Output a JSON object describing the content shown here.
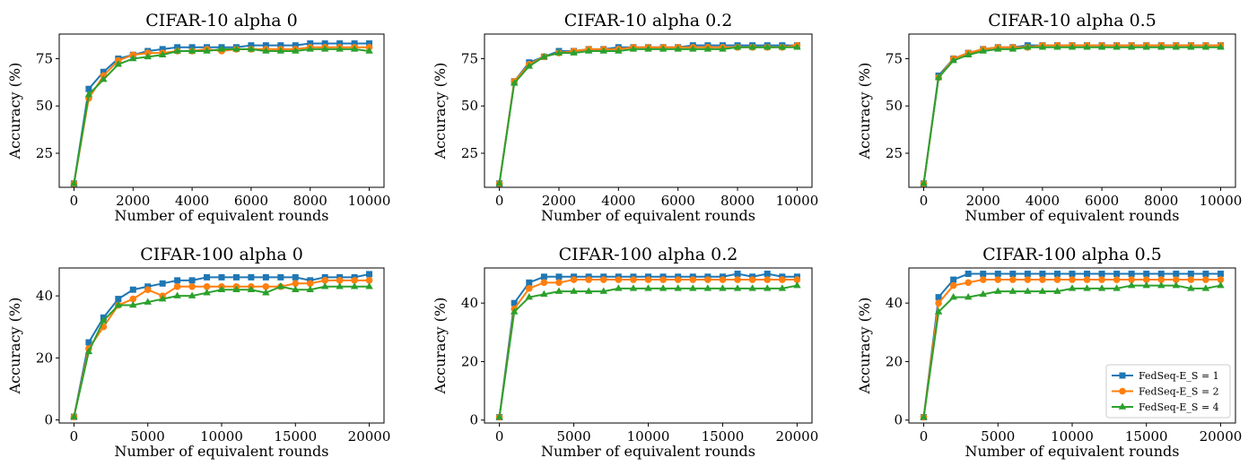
{
  "figure": {
    "legend": {
      "placement": "lower-right",
      "entries": [
        {
          "label": "FedSeq-E_S = 1"
        },
        {
          "label": "FedSeq-E_S = 2"
        },
        {
          "label": "FedSeq-E_S = 4"
        }
      ]
    }
  },
  "chart_data": [
    {
      "type": "line",
      "title": "CIFAR-10 alpha 0",
      "xlabel": "Number of equivalent rounds",
      "ylabel": "Accuracy (%)",
      "xlim": [
        -500,
        10500
      ],
      "ylim": [
        7,
        88
      ],
      "xticks": [
        0,
        2000,
        4000,
        6000,
        8000,
        10000
      ],
      "yticks": [
        25,
        50,
        75
      ],
      "x": [
        0,
        500,
        1000,
        1500,
        2000,
        2500,
        3000,
        3500,
        4000,
        4500,
        5000,
        5500,
        6000,
        6500,
        7000,
        7500,
        8000,
        8500,
        9000,
        9500,
        10000
      ],
      "series": [
        {
          "name": "FedSeq-E_S = 1",
          "color": "#1f77b4",
          "marker": "square",
          "values": [
            9,
            59,
            68,
            75,
            77,
            79,
            80,
            81,
            81,
            81,
            81,
            81,
            82,
            82,
            82,
            82,
            83,
            83,
            83,
            83,
            83
          ]
        },
        {
          "name": "FedSeq-E_S = 2",
          "color": "#ff7f0e",
          "marker": "circle",
          "values": [
            9,
            54,
            66,
            74,
            77,
            78,
            78,
            79,
            79,
            80,
            79,
            80,
            80,
            80,
            80,
            80,
            81,
            81,
            81,
            81,
            81
          ]
        },
        {
          "name": "FedSeq-E_S = 4",
          "color": "#2ca02c",
          "marker": "triangle",
          "values": [
            9,
            56,
            64,
            72,
            75,
            76,
            77,
            79,
            79,
            79,
            80,
            80,
            80,
            79,
            79,
            79,
            80,
            80,
            80,
            80,
            79
          ]
        }
      ]
    },
    {
      "type": "line",
      "title": "CIFAR-10 alpha 0.2",
      "xlabel": "Number of equivalent rounds",
      "ylabel": "Accuracy (%)",
      "xlim": [
        -500,
        10500
      ],
      "ylim": [
        7,
        88
      ],
      "xticks": [
        0,
        2000,
        4000,
        6000,
        8000,
        10000
      ],
      "yticks": [
        25,
        50,
        75
      ],
      "x": [
        0,
        500,
        1000,
        1500,
        2000,
        2500,
        3000,
        3500,
        4000,
        4500,
        5000,
        5500,
        6000,
        6500,
        7000,
        7500,
        8000,
        8500,
        9000,
        9500,
        10000
      ],
      "series": [
        {
          "name": "FedSeq-E_S = 1",
          "color": "#1f77b4",
          "marker": "square",
          "values": [
            9,
            63,
            73,
            76,
            79,
            79,
            80,
            80,
            81,
            81,
            81,
            81,
            81,
            82,
            82,
            82,
            82,
            82,
            82,
            82,
            82
          ]
        },
        {
          "name": "FedSeq-E_S = 2",
          "color": "#ff7f0e",
          "marker": "circle",
          "values": [
            9,
            63,
            72,
            76,
            78,
            79,
            80,
            80,
            80,
            81,
            81,
            81,
            81,
            81,
            81,
            81,
            81,
            81,
            81,
            81,
            82
          ]
        },
        {
          "name": "FedSeq-E_S = 4",
          "color": "#2ca02c",
          "marker": "triangle",
          "values": [
            9,
            62,
            71,
            76,
            78,
            78,
            79,
            79,
            79,
            80,
            80,
            80,
            80,
            80,
            80,
            80,
            81,
            81,
            81,
            81,
            81
          ]
        }
      ]
    },
    {
      "type": "line",
      "title": "CIFAR-10 alpha 0.5",
      "xlabel": "Number of equivalent rounds",
      "ylabel": "Accuracy (%)",
      "xlim": [
        -500,
        10500
      ],
      "ylim": [
        7,
        88
      ],
      "xticks": [
        0,
        2000,
        4000,
        6000,
        8000,
        10000
      ],
      "yticks": [
        25,
        50,
        75
      ],
      "x": [
        0,
        500,
        1000,
        1500,
        2000,
        2500,
        3000,
        3500,
        4000,
        4500,
        5000,
        5500,
        6000,
        6500,
        7000,
        7500,
        8000,
        8500,
        9000,
        9500,
        10000
      ],
      "series": [
        {
          "name": "FedSeq-E_S = 1",
          "color": "#1f77b4",
          "marker": "square",
          "values": [
            9,
            66,
            75,
            78,
            80,
            81,
            81,
            82,
            82,
            82,
            82,
            82,
            82,
            82,
            82,
            82,
            82,
            82,
            82,
            82,
            82
          ]
        },
        {
          "name": "FedSeq-E_S = 2",
          "color": "#ff7f0e",
          "marker": "circle",
          "values": [
            9,
            65,
            75,
            78,
            80,
            81,
            81,
            81,
            82,
            82,
            82,
            82,
            82,
            82,
            82,
            82,
            82,
            82,
            82,
            82,
            82
          ]
        },
        {
          "name": "FedSeq-E_S = 4",
          "color": "#2ca02c",
          "marker": "triangle",
          "values": [
            9,
            65,
            74,
            77,
            79,
            80,
            80,
            81,
            81,
            81,
            81,
            81,
            81,
            81,
            81,
            81,
            81,
            81,
            81,
            81,
            81
          ]
        }
      ]
    },
    {
      "type": "line",
      "title": "CIFAR-100 alpha 0",
      "xlabel": "Number of equivalent rounds",
      "ylabel": "Accuracy (%)",
      "xlim": [
        -1000,
        21000
      ],
      "ylim": [
        -1,
        49
      ],
      "xticks": [
        0,
        5000,
        10000,
        15000,
        20000
      ],
      "yticks": [
        0,
        20,
        40
      ],
      "x": [
        0,
        1000,
        2000,
        3000,
        4000,
        5000,
        6000,
        7000,
        8000,
        9000,
        10000,
        11000,
        12000,
        13000,
        14000,
        15000,
        16000,
        17000,
        18000,
        19000,
        20000
      ],
      "series": [
        {
          "name": "FedSeq-E_S = 1",
          "color": "#1f77b4",
          "marker": "square",
          "values": [
            1,
            25,
            33,
            39,
            42,
            43,
            44,
            45,
            45,
            46,
            46,
            46,
            46,
            46,
            46,
            46,
            45,
            46,
            46,
            46,
            47
          ]
        },
        {
          "name": "FedSeq-E_S = 2",
          "color": "#ff7f0e",
          "marker": "circle",
          "values": [
            1,
            23,
            30,
            37,
            39,
            42,
            40,
            43,
            43,
            43,
            43,
            43,
            43,
            43,
            43,
            44,
            44,
            45,
            45,
            45,
            45
          ]
        },
        {
          "name": "FedSeq-E_S = 4",
          "color": "#2ca02c",
          "marker": "triangle",
          "values": [
            1,
            22,
            32,
            37,
            37,
            38,
            39,
            40,
            40,
            41,
            42,
            42,
            42,
            41,
            43,
            42,
            42,
            43,
            43,
            43,
            43
          ]
        }
      ]
    },
    {
      "type": "line",
      "title": "CIFAR-100 alpha 0.2",
      "xlabel": "Number of equivalent rounds",
      "ylabel": "Accuracy (%)",
      "xlim": [
        -1000,
        21000
      ],
      "ylim": [
        -1,
        52
      ],
      "xticks": [
        0,
        5000,
        10000,
        15000,
        20000
      ],
      "yticks": [
        0,
        20,
        40
      ],
      "x": [
        0,
        1000,
        2000,
        3000,
        4000,
        5000,
        6000,
        7000,
        8000,
        9000,
        10000,
        11000,
        12000,
        13000,
        14000,
        15000,
        16000,
        17000,
        18000,
        19000,
        20000
      ],
      "series": [
        {
          "name": "FedSeq-E_S = 1",
          "color": "#1f77b4",
          "marker": "square",
          "values": [
            1,
            40,
            47,
            49,
            49,
            49,
            49,
            49,
            49,
            49,
            49,
            49,
            49,
            49,
            49,
            49,
            50,
            49,
            50,
            49,
            49
          ]
        },
        {
          "name": "FedSeq-E_S = 2",
          "color": "#ff7f0e",
          "marker": "circle",
          "values": [
            1,
            38,
            45,
            47,
            47,
            48,
            48,
            48,
            48,
            48,
            48,
            48,
            48,
            48,
            48,
            48,
            48,
            48,
            48,
            48,
            48
          ]
        },
        {
          "name": "FedSeq-E_S = 4",
          "color": "#2ca02c",
          "marker": "triangle",
          "values": [
            1,
            37,
            42,
            43,
            44,
            44,
            44,
            44,
            45,
            45,
            45,
            45,
            45,
            45,
            45,
            45,
            45,
            45,
            45,
            45,
            46
          ]
        }
      ]
    },
    {
      "type": "line",
      "title": "CIFAR-100 alpha 0.5",
      "xlabel": "Number of equivalent rounds",
      "ylabel": "Accuracy (%)",
      "xlim": [
        -1000,
        21000
      ],
      "ylim": [
        -1,
        52
      ],
      "xticks": [
        0,
        5000,
        10000,
        15000,
        20000
      ],
      "yticks": [
        0,
        20,
        40
      ],
      "x": [
        0,
        1000,
        2000,
        3000,
        4000,
        5000,
        6000,
        7000,
        8000,
        9000,
        10000,
        11000,
        12000,
        13000,
        14000,
        15000,
        16000,
        17000,
        18000,
        19000,
        20000
      ],
      "series": [
        {
          "name": "FedSeq-E_S = 1",
          "color": "#1f77b4",
          "marker": "square",
          "values": [
            1,
            42,
            48,
            50,
            50,
            50,
            50,
            50,
            50,
            50,
            50,
            50,
            50,
            50,
            50,
            50,
            50,
            50,
            50,
            50,
            50
          ]
        },
        {
          "name": "FedSeq-E_S = 2",
          "color": "#ff7f0e",
          "marker": "circle",
          "values": [
            1,
            40,
            46,
            47,
            48,
            48,
            48,
            48,
            48,
            48,
            48,
            48,
            48,
            48,
            48,
            48,
            48,
            48,
            48,
            48,
            48
          ]
        },
        {
          "name": "FedSeq-E_S = 4",
          "color": "#2ca02c",
          "marker": "triangle",
          "values": [
            1,
            37,
            42,
            42,
            43,
            44,
            44,
            44,
            44,
            44,
            45,
            45,
            45,
            45,
            46,
            46,
            46,
            46,
            45,
            45,
            46
          ]
        }
      ]
    }
  ]
}
